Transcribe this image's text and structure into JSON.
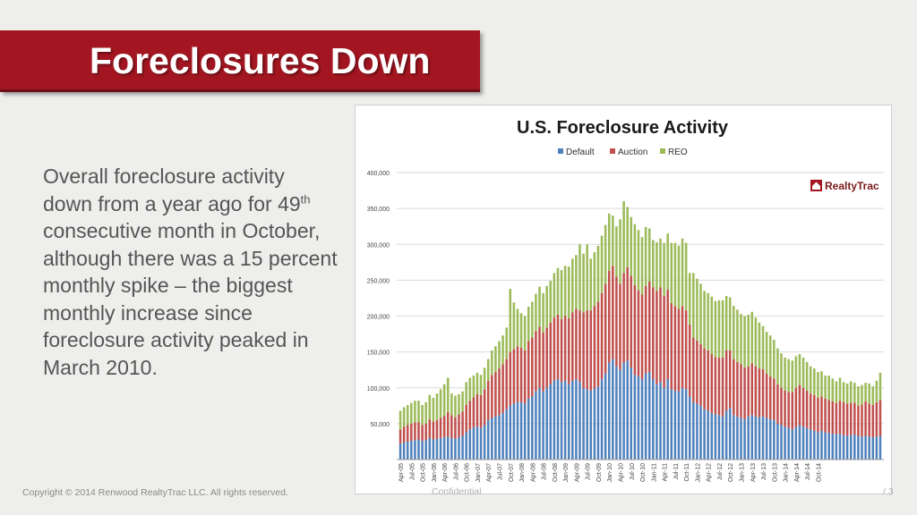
{
  "slide": {
    "title": "Foreclosures Down",
    "body_pre": "Overall foreclosure activity down from a year ago for 49",
    "body_sup": "th",
    "body_post": " consecutive month in October, although there was a 15 percent monthly spike – the biggest monthly increase since foreclosure activity peaked in March 2010.",
    "footer_copyright": "Copyright © 2014 Renwood RealtyTrac LLC. All rights reserved.",
    "footer_confidential": "Confidential",
    "footer_page": "/ 3"
  },
  "colors": {
    "title_bar": "#a31621",
    "default": "#4f81bd",
    "auction": "#c0504d",
    "reo": "#9bbb59"
  },
  "chart_data": {
    "type": "bar",
    "stacked": true,
    "title": "U.S. Foreclosure Activity",
    "brand_label": "RealtyTrac",
    "legend": [
      "Default",
      "Auction",
      "REO"
    ],
    "ylim": [
      0,
      400000
    ],
    "yticks": [
      "50,000",
      "100,000",
      "150,000",
      "200,000",
      "250,000",
      "300,000",
      "350,000",
      "400,000"
    ],
    "ytick_values": [
      50000,
      100000,
      150000,
      200000,
      250000,
      300000,
      350000,
      400000
    ],
    "x_labels": [
      "Apr-05",
      "Jul-05",
      "Oct-05",
      "Jan-06",
      "Apr-06",
      "Jul-06",
      "Oct-06",
      "Jan-07",
      "Apr-07",
      "Jul-07",
      "Oct-07",
      "Jan-08",
      "Apr-08",
      "Jul-08",
      "Oct-08",
      "Jan-09",
      "Apr-09",
      "Jul-09",
      "Oct-09",
      "Jan-10",
      "Apr-10",
      "Jul-10",
      "Oct-10",
      "Jan-11",
      "Apr-11",
      "Jul-11",
      "Oct-11",
      "Jan-12",
      "Apr-12",
      "Jul-12",
      "Oct-12",
      "Jan-13",
      "Apr-13",
      "Jul-13",
      "Oct-13",
      "Jan-14",
      "Apr-14",
      "Jul-14",
      "Oct-14"
    ],
    "series": [
      {
        "name": "Default",
        "values": [
          22000,
          24000,
          25000,
          26000,
          27000,
          28000,
          26000,
          27000,
          30000,
          28000,
          29000,
          30000,
          31000,
          32000,
          30000,
          29000,
          31000,
          33000,
          38000,
          42000,
          45000,
          46000,
          44000,
          48000,
          55000,
          58000,
          60000,
          62000,
          65000,
          70000,
          75000,
          78000,
          80000,
          80000,
          78000,
          85000,
          88000,
          95000,
          100000,
          95000,
          100000,
          105000,
          110000,
          112000,
          108000,
          110000,
          105000,
          110000,
          112000,
          108000,
          100000,
          98000,
          96000,
          99000,
          102000,
          112000,
          120000,
          135000,
          140000,
          130000,
          125000,
          135000,
          138000,
          128000,
          118000,
          116000,
          112000,
          120000,
          122000,
          112000,
          105000,
          108000,
          100000,
          112000,
          98000,
          96000,
          95000,
          100000,
          98000,
          88000,
          80000,
          78000,
          75000,
          70000,
          68000,
          65000,
          63000,
          62000,
          60000,
          68000,
          72000,
          62000,
          60000,
          58000,
          56000,
          60000,
          62000,
          60000,
          59000,
          60000,
          58000,
          56000,
          55000,
          50000,
          48000,
          46000,
          44000,
          42000,
          45000,
          48000,
          46000,
          44000,
          42000,
          40000,
          38000,
          40000,
          38000,
          37000,
          36000,
          35000,
          36000,
          34000,
          33000,
          34000,
          35000,
          33000,
          32000,
          33000,
          32000,
          31000,
          32000,
          33000
        ]
      },
      {
        "name": "Auction",
        "values": [
          20000,
          22000,
          23000,
          24000,
          25000,
          24000,
          22000,
          23000,
          26000,
          25000,
          26000,
          28000,
          30000,
          34000,
          32000,
          30000,
          32000,
          34000,
          38000,
          40000,
          42000,
          45000,
          46000,
          50000,
          55000,
          60000,
          62000,
          65000,
          68000,
          70000,
          75000,
          76000,
          78000,
          76000,
          74000,
          80000,
          82000,
          84000,
          85000,
          82000,
          84000,
          86000,
          88000,
          90000,
          88000,
          90000,
          92000,
          95000,
          98000,
          100000,
          105000,
          110000,
          112000,
          115000,
          118000,
          120000,
          125000,
          128000,
          130000,
          125000,
          120000,
          125000,
          130000,
          128000,
          125000,
          120000,
          118000,
          122000,
          126000,
          128000,
          130000,
          132000,
          128000,
          125000,
          120000,
          118000,
          115000,
          114000,
          110000,
          100000,
          90000,
          88000,
          86000,
          85000,
          84000,
          82000,
          80000,
          80000,
          82000,
          84000,
          80000,
          78000,
          76000,
          75000,
          72000,
          70000,
          72000,
          70000,
          68000,
          66000,
          62000,
          60000,
          58000,
          55000,
          52000,
          50000,
          50000,
          52000,
          55000,
          56000,
          54000,
          52000,
          50000,
          50000,
          48000,
          48000,
          47000,
          46000,
          45000,
          44000,
          46000,
          46000,
          45000,
          45000,
          44000,
          42000,
          45000,
          48000,
          46000,
          45000,
          48000,
          50000
        ]
      },
      {
        "name": "REO",
        "values": [
          26000,
          27000,
          28000,
          29000,
          30000,
          30000,
          28000,
          30000,
          34000,
          33000,
          37000,
          40000,
          44000,
          48000,
          30000,
          30000,
          28000,
          28000,
          32000,
          32000,
          30000,
          30000,
          28000,
          30000,
          30000,
          34000,
          36000,
          38000,
          40000,
          44000,
          88000,
          65000,
          52000,
          48000,
          48000,
          48000,
          50000,
          52000,
          56000,
          55000,
          58000,
          58000,
          62000,
          65000,
          68000,
          70000,
          72000,
          75000,
          75000,
          92000,
          82000,
          92000,
          72000,
          75000,
          78000,
          80000,
          82000,
          80000,
          70000,
          70000,
          90000,
          100000,
          84000,
          82000,
          85000,
          84000,
          80000,
          82000,
          74000,
          66000,
          68000,
          68000,
          74000,
          78000,
          84000,
          88000,
          88000,
          94000,
          94000,
          72000,
          90000,
          86000,
          84000,
          80000,
          80000,
          80000,
          78000,
          80000,
          80000,
          76000,
          74000,
          74000,
          73000,
          70000,
          72000,
          72000,
          72000,
          68000,
          64000,
          60000,
          58000,
          57000,
          54000,
          50000,
          48000,
          46000,
          46000,
          44000,
          44000,
          43000,
          42000,
          40000,
          38000,
          37000,
          36000,
          35000,
          32000,
          34000,
          32000,
          30000,
          32000,
          28000,
          28000,
          30000,
          28000,
          27000,
          27000,
          26000,
          28000,
          26000,
          30000,
          38000
        ]
      }
    ]
  }
}
